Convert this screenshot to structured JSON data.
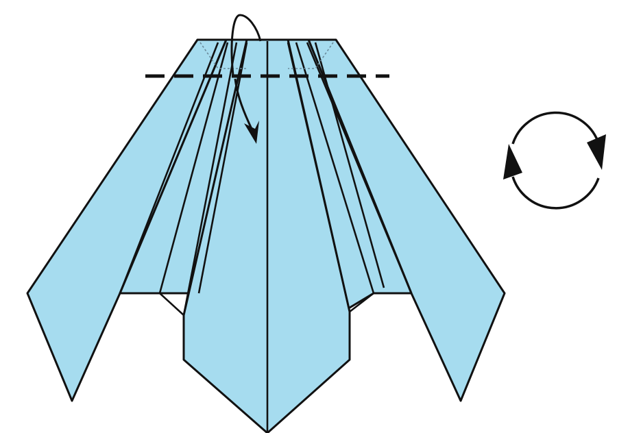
{
  "diagram": {
    "paper_color": "#a6dcef",
    "line_color": "#111111",
    "icons": {
      "fold_arrow": "fold-over-arrow-icon",
      "turn_over": "turn-over-icon"
    }
  }
}
